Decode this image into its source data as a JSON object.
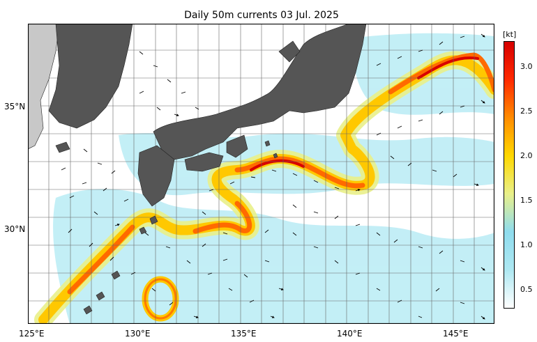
{
  "title": "Daily 50m currents 03 Jul. 2025",
  "axes": {
    "lon_ticks": [
      "125°E",
      "130°E",
      "135°E",
      "140°E",
      "145°E"
    ],
    "lat_ticks": [
      "35°N",
      "30°N"
    ]
  },
  "colorbar": {
    "unit": "[kt]",
    "ticks": [
      "0.5",
      "1.0",
      "1.5",
      "2.0",
      "2.5",
      "3.0"
    ],
    "range": [
      0.25,
      3.25
    ],
    "colors": [
      "#ffffff",
      "#aee8f2",
      "#8fdcee",
      "#e9f08a",
      "#ffd800",
      "#ff8c00",
      "#ff2a00",
      "#d60000"
    ]
  },
  "map": {
    "extent_lon": [
      125,
      147
    ],
    "extent_lat": [
      26.5,
      36.3
    ],
    "land_color": "#555555",
    "far_land_color": "#c8c8c8"
  }
}
